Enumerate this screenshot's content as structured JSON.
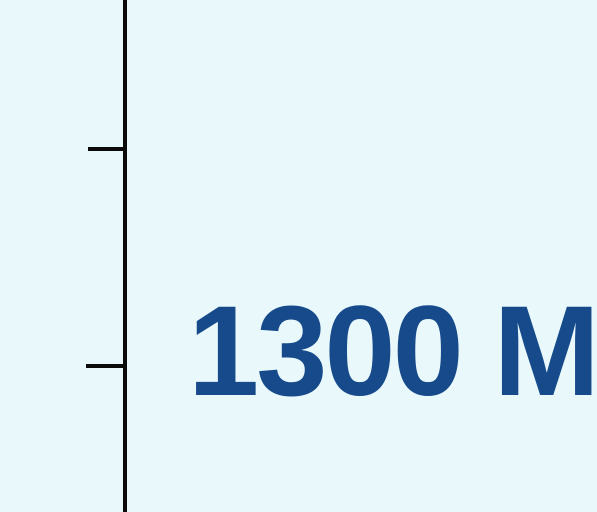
{
  "label": {
    "text": "1300 M",
    "color": "#174a8b"
  },
  "colors": {
    "background": "#e8f8fb",
    "axis": "#0b0b0b"
  }
}
